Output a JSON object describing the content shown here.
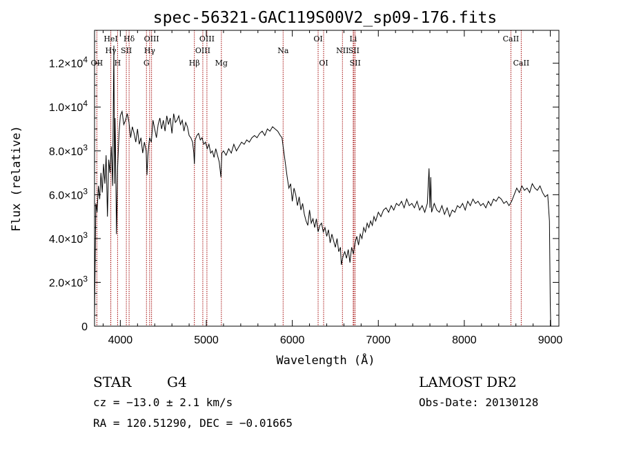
{
  "chart_data": {
    "type": "line",
    "title": "spec-56321-GAC119S00V2_sp09-176.fits",
    "xlabel": "Wavelength (Å)",
    "ylabel": "Flux (relative)",
    "xlim": [
      3700,
      9100
    ],
    "ylim": [
      0,
      13500
    ],
    "x_ticks": [
      {
        "value": 4000,
        "label": "4000"
      },
      {
        "value": 5000,
        "label": "5000"
      },
      {
        "value": 6000,
        "label": "6000"
      },
      {
        "value": 7000,
        "label": "7000"
      },
      {
        "value": 8000,
        "label": "8000"
      },
      {
        "value": 9000,
        "label": "9000"
      }
    ],
    "y_ticks": [
      {
        "value": 0,
        "mantissa": "0",
        "exponent": ""
      },
      {
        "value": 2000,
        "mantissa": "2.0×10",
        "exponent": "3"
      },
      {
        "value": 4000,
        "mantissa": "4.0×10",
        "exponent": "3"
      },
      {
        "value": 6000,
        "mantissa": "6.0×10",
        "exponent": "3"
      },
      {
        "value": 8000,
        "mantissa": "8.0×10",
        "exponent": "3"
      },
      {
        "value": 10000,
        "mantissa": "1.0×10",
        "exponent": "4"
      },
      {
        "value": 12000,
        "mantissa": "1.2×10",
        "exponent": "4"
      }
    ],
    "lines": [
      {
        "label": "OII",
        "x": 3727,
        "row": 2
      },
      {
        "label": "Hγ",
        "x": 3889,
        "row": 1
      },
      {
        "label": "HeI",
        "x": 3889,
        "row": 0
      },
      {
        "label": "H",
        "x": 3968,
        "row": 2
      },
      {
        "label": "Hδ",
        "x": 4102,
        "row": 0
      },
      {
        "label": "SII",
        "x": 4070,
        "row": 1
      },
      {
        "label": "G",
        "x": 4304,
        "row": 2
      },
      {
        "label": "OIII",
        "x": 4363,
        "row": 0
      },
      {
        "label": "Hγ",
        "x": 4341,
        "row": 1
      },
      {
        "label": "Hβ",
        "x": 4861,
        "row": 2
      },
      {
        "label": "OIII",
        "x": 4959,
        "row": 1
      },
      {
        "label": "OIII",
        "x": 5007,
        "row": 0
      },
      {
        "label": "Mg",
        "x": 5175,
        "row": 2
      },
      {
        "label": "Na",
        "x": 5893,
        "row": 1
      },
      {
        "label": "OI",
        "x": 6300,
        "row": 0
      },
      {
        "label": "OI",
        "x": 6364,
        "row": 2
      },
      {
        "label": "NII",
        "x": 6583,
        "row": 1
      },
      {
        "label": "Li",
        "x": 6708,
        "row": 0
      },
      {
        "label": "SII",
        "x": 6716,
        "row": 1
      },
      {
        "label": "SII",
        "x": 6731,
        "row": 2
      },
      {
        "label": "CaII",
        "x": 8542,
        "row": 0
      },
      {
        "label": "CaII",
        "x": 8662,
        "row": 2
      }
    ],
    "series": [
      {
        "x": [
          3700,
          3715,
          3730,
          3745,
          3760,
          3775,
          3790,
          3805,
          3820,
          3835,
          3850,
          3865,
          3880,
          3895,
          3910,
          3925,
          3933,
          3940,
          3955,
          3968,
          3985,
          4000,
          4020,
          4040,
          4060,
          4080,
          4100,
          4120,
          4140,
          4160,
          4180,
          4200,
          4220,
          4240,
          4260,
          4280,
          4300,
          4310,
          4320,
          4340,
          4360,
          4380,
          4400,
          4420,
          4440,
          4460,
          4480,
          4500,
          4520,
          4540,
          4560,
          4580,
          4600,
          4620,
          4640,
          4660,
          4680,
          4700,
          4720,
          4740,
          4760,
          4780,
          4800,
          4820,
          4840,
          4855,
          4861,
          4870,
          4890,
          4910,
          4930,
          4950,
          4970,
          4990,
          5010,
          5030,
          5050,
          5070,
          5090,
          5110,
          5130,
          5150,
          5170,
          5180,
          5200,
          5230,
          5260,
          5290,
          5320,
          5350,
          5380,
          5410,
          5440,
          5470,
          5500,
          5530,
          5560,
          5590,
          5620,
          5650,
          5680,
          5710,
          5740,
          5770,
          5800,
          5830,
          5860,
          5880,
          5893,
          5900,
          5920,
          5940,
          5960,
          5980,
          6000,
          6020,
          6040,
          6060,
          6080,
          6100,
          6120,
          6140,
          6160,
          6180,
          6200,
          6220,
          6240,
          6260,
          6280,
          6300,
          6320,
          6340,
          6360,
          6380,
          6400,
          6420,
          6440,
          6460,
          6480,
          6500,
          6520,
          6540,
          6560,
          6563,
          6570,
          6590,
          6610,
          6630,
          6650,
          6670,
          6690,
          6710,
          6730,
          6750,
          6770,
          6790,
          6810,
          6830,
          6850,
          6870,
          6890,
          6910,
          6930,
          6950,
          6970,
          7000,
          7030,
          7060,
          7090,
          7120,
          7150,
          7180,
          7210,
          7240,
          7270,
          7300,
          7330,
          7360,
          7390,
          7420,
          7450,
          7480,
          7510,
          7540,
          7570,
          7590,
          7600,
          7610,
          7620,
          7650,
          7680,
          7710,
          7740,
          7770,
          7800,
          7830,
          7860,
          7890,
          7920,
          7950,
          7980,
          8010,
          8040,
          8070,
          8100,
          8130,
          8160,
          8190,
          8220,
          8250,
          8280,
          8310,
          8340,
          8370,
          8400,
          8430,
          8460,
          8490,
          8520,
          8550,
          8580,
          8610,
          8640,
          8670,
          8700,
          8730,
          8760,
          8790,
          8820,
          8850,
          8880,
          8910,
          8940,
          8970,
          8990,
          9000,
          9005
        ],
        "values": [
          500,
          5600,
          5200,
          6400,
          5800,
          7000,
          6100,
          7400,
          6500,
          7800,
          5000,
          7600,
          7000,
          8200,
          6400,
          12800,
          6500,
          9500,
          4200,
          7200,
          8800,
          9600,
          9800,
          9200,
          9400,
          9700,
          9300,
          8600,
          9100,
          8800,
          8400,
          9000,
          8300,
          8600,
          7900,
          8400,
          8000,
          6900,
          7800,
          8600,
          8400,
          9400,
          9000,
          8600,
          9200,
          9500,
          9000,
          9400,
          8900,
          9600,
          9200,
          9500,
          8800,
          9700,
          9300,
          9400,
          9600,
          9200,
          9400,
          8900,
          9300,
          9100,
          8700,
          8600,
          8400,
          7900,
          7400,
          8500,
          8700,
          8800,
          8500,
          8600,
          8300,
          8400,
          8100,
          8300,
          7900,
          8000,
          7700,
          8100,
          7800,
          7500,
          6800,
          7900,
          8000,
          7800,
          8100,
          7900,
          8300,
          8000,
          8200,
          8400,
          8300,
          8500,
          8400,
          8600,
          8700,
          8600,
          8800,
          8900,
          8700,
          9000,
          8900,
          9100,
          9000,
          8900,
          8700,
          8600,
          8200,
          8000,
          7400,
          6800,
          6300,
          6500,
          5700,
          6300,
          6000,
          5500,
          5900,
          5300,
          5600,
          5100,
          4800,
          4600,
          5300,
          4700,
          4900,
          4500,
          4900,
          4300,
          4600,
          4700,
          4300,
          4500,
          4100,
          4400,
          3800,
          4200,
          3900,
          3600,
          4000,
          3400,
          3600,
          3300,
          2800,
          3200,
          3400,
          3100,
          3500,
          2900,
          3600,
          3300,
          3800,
          4100,
          3700,
          4200,
          4000,
          4500,
          4300,
          4700,
          4500,
          4800,
          4600,
          5000,
          4800,
          5200,
          5000,
          5300,
          5400,
          5200,
          5500,
          5300,
          5600,
          5500,
          5700,
          5400,
          5800,
          5500,
          5600,
          5400,
          5700,
          5300,
          5500,
          5200,
          5600,
          7200,
          5400,
          6800,
          5200,
          5600,
          5300,
          5200,
          5500,
          5100,
          5400,
          5000,
          5300,
          5200,
          5500,
          5400,
          5600,
          5300,
          5700,
          5500,
          5800,
          5600,
          5700,
          5500,
          5600,
          5400,
          5700,
          5500,
          5800,
          5700,
          5900,
          5800,
          5600,
          5700,
          5500,
          5700,
          6000,
          6300,
          6100,
          6400,
          6200,
          6300,
          6100,
          6500,
          6300,
          6200,
          6400,
          6100,
          5900,
          6000,
          4800,
          1000,
          0
        ]
      }
    ]
  },
  "footer": {
    "object_class": "STAR",
    "subclass": "G4",
    "survey": "LAMOST DR2",
    "redshift": "cz = −13.0 ± 2.1 km/s",
    "obs_date": "Obs-Date: 20130128",
    "coords": "RA = 120.51290, DEC =  −0.01665"
  },
  "colors": {
    "spectrum": "#000000",
    "line_marker": "#a00000",
    "axes": "#000000",
    "background": "#ffffff"
  }
}
